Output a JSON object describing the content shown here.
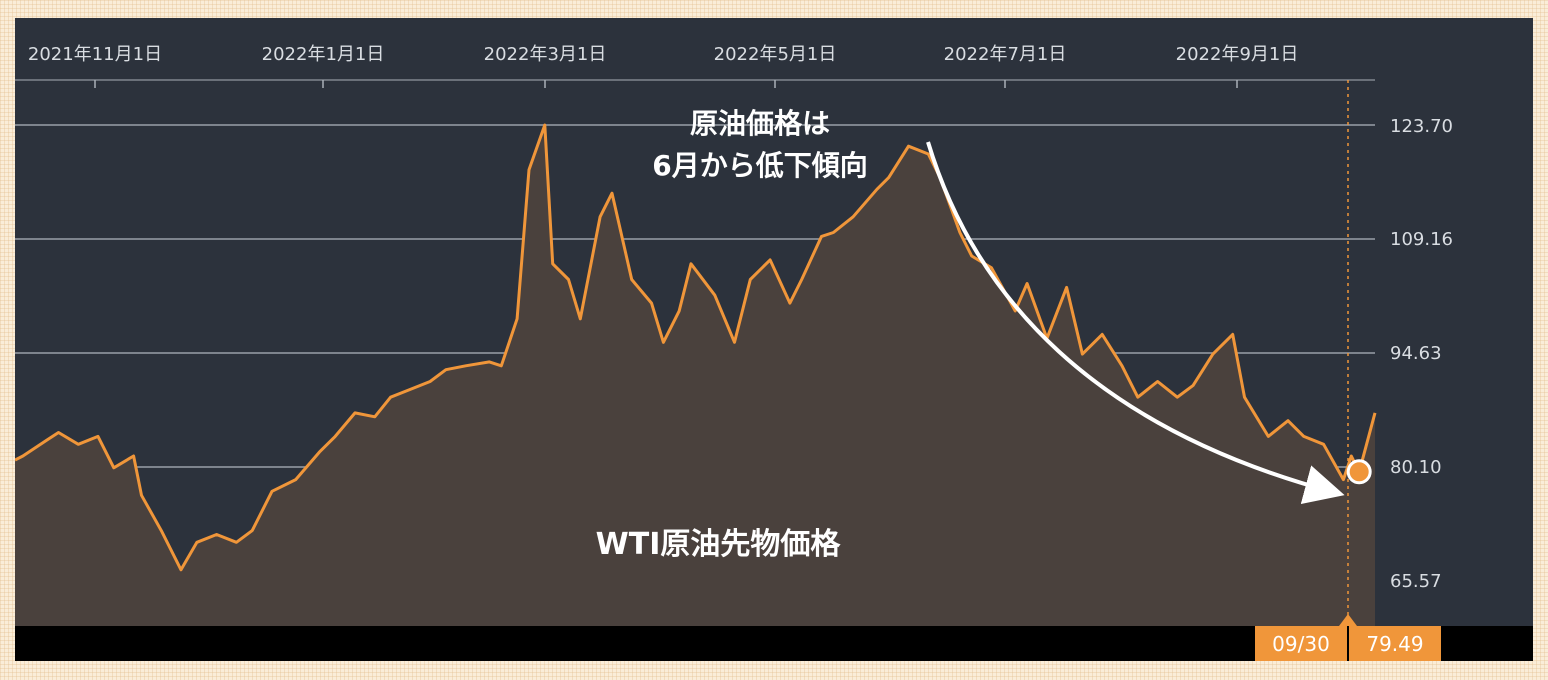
{
  "chart_data": {
    "type": "area",
    "x_axis_labels": [
      "2021年11月1日",
      "2022年1月1日",
      "2022年3月1日",
      "2022年5月1日",
      "2022年7月1日",
      "2022年9月1日"
    ],
    "y_ticks": [
      "123.70",
      "109.16",
      "94.63",
      "80.10",
      "65.57"
    ],
    "ylim": [
      61.5,
      128
    ],
    "annotation_lines": [
      "原油価格は",
      "6月から低下傾向"
    ],
    "series_label": "WTI原油先物価格",
    "readout": {
      "date": "09/30",
      "value": "79.49"
    },
    "x": [
      "2021-10-25",
      "2021-10-27",
      "2021-11-02",
      "2021-11-05",
      "2021-11-10",
      "2021-11-15",
      "2021-11-19",
      "2021-11-24",
      "2021-11-26",
      "2021-12-01",
      "2021-12-06",
      "2021-12-10",
      "2021-12-15",
      "2021-12-20",
      "2021-12-24",
      "2021-12-29",
      "2022-01-04",
      "2022-01-10",
      "2022-01-14",
      "2022-01-19",
      "2022-01-24",
      "2022-01-28",
      "2022-02-02",
      "2022-02-07",
      "2022-02-11",
      "2022-02-16",
      "2022-02-22",
      "2022-02-25",
      "2022-03-01",
      "2022-03-04",
      "2022-03-08",
      "2022-03-10",
      "2022-03-14",
      "2022-03-17",
      "2022-03-22",
      "2022-03-25",
      "2022-03-30",
      "2022-04-04",
      "2022-04-07",
      "2022-04-11",
      "2022-04-14",
      "2022-04-20",
      "2022-04-25",
      "2022-04-29",
      "2022-05-04",
      "2022-05-09",
      "2022-05-12",
      "2022-05-17",
      "2022-05-20",
      "2022-05-25",
      "2022-05-31",
      "2022-06-03",
      "2022-06-08",
      "2022-06-13",
      "2022-06-16",
      "2022-06-21",
      "2022-06-24",
      "2022-06-29",
      "2022-07-05",
      "2022-07-08",
      "2022-07-13",
      "2022-07-18",
      "2022-07-22",
      "2022-07-27",
      "2022-08-01",
      "2022-08-05",
      "2022-08-10",
      "2022-08-15",
      "2022-08-19",
      "2022-08-24",
      "2022-08-29",
      "2022-09-01",
      "2022-09-07",
      "2022-09-12",
      "2022-09-16",
      "2022-09-21",
      "2022-09-26",
      "2022-09-28",
      "2022-09-30",
      "2022-10-04"
    ],
    "values": [
      81.0,
      81.5,
      83.5,
      84.5,
      83.0,
      84.0,
      80.0,
      81.5,
      76.5,
      72.0,
      67.0,
      70.5,
      71.5,
      70.5,
      72.0,
      77.0,
      78.5,
      82.0,
      84.0,
      87.0,
      86.5,
      89.0,
      90.0,
      91.0,
      92.5,
      93.0,
      93.5,
      93.0,
      99.0,
      118.0,
      123.7,
      106.0,
      104.0,
      99.0,
      112.0,
      115.0,
      104.0,
      101.0,
      96.0,
      100.0,
      106.0,
      102.0,
      96.0,
      104.0,
      106.5,
      101.0,
      104.0,
      109.5,
      110.0,
      112.0,
      115.5,
      117.0,
      121.0,
      120.0,
      117.0,
      110.0,
      107.0,
      105.5,
      100.0,
      103.5,
      96.5,
      103.0,
      94.5,
      97.0,
      93.0,
      89.0,
      91.0,
      89.0,
      90.5,
      94.5,
      97.0,
      89.0,
      84.0,
      86.0,
      84.0,
      83.0,
      78.5,
      81.5,
      79.49,
      87.0
    ]
  }
}
